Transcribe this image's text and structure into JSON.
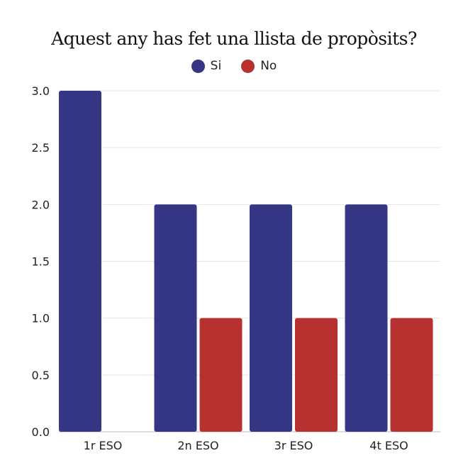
{
  "chart_data": {
    "type": "bar",
    "title": "Aquest any has fet una llista de propòsits?",
    "categories": [
      "1r ESO",
      "2n ESO",
      "3r ESO",
      "4t ESO"
    ],
    "series": [
      {
        "name": "Si",
        "values": [
          3,
          2,
          2,
          2
        ],
        "color": "#353684"
      },
      {
        "name": "No",
        "values": [
          0,
          1,
          1,
          1
        ],
        "color": "#b83131"
      }
    ],
    "ylim": [
      0,
      3
    ],
    "yticks": [
      "0.0",
      "0.5",
      "1.0",
      "1.5",
      "2.0",
      "2.5",
      "3.0"
    ],
    "xlabel": "",
    "ylabel": "",
    "grid": true,
    "legend": "top-center"
  }
}
